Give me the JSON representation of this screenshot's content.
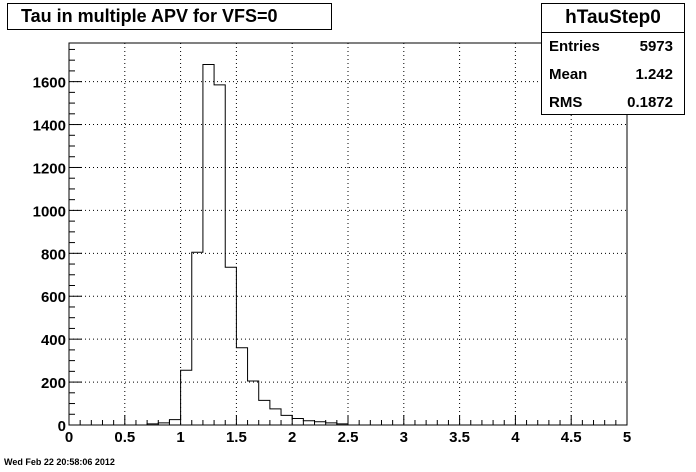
{
  "title": "Tau in multiple APV for VFS=0",
  "stats": {
    "name": "hTauStep0",
    "rows": [
      {
        "label": "Entries",
        "value": "5973"
      },
      {
        "label": "Mean",
        "value": "1.242"
      },
      {
        "label": "RMS",
        "value": "0.1872"
      }
    ]
  },
  "footer": "Wed Feb 22 20:58:06 2012",
  "chart_data": {
    "type": "bar",
    "bin_width": 0.1,
    "bin_start": 0,
    "values": [
      0,
      0,
      0,
      0,
      0,
      0,
      0,
      5,
      10,
      25,
      255,
      805,
      1680,
      1585,
      735,
      360,
      205,
      115,
      75,
      45,
      30,
      20,
      15,
      10,
      5,
      0,
      0,
      0,
      0,
      0,
      0,
      0,
      0,
      0,
      0,
      0,
      0,
      0,
      0,
      0,
      0,
      0,
      0,
      0,
      0,
      0,
      0,
      0,
      0,
      0
    ],
    "xlim": [
      0,
      5
    ],
    "ylim": [
      0,
      1780
    ],
    "x_ticks": [
      0,
      0.5,
      1,
      1.5,
      2,
      2.5,
      3,
      3.5,
      4,
      4.5,
      5
    ],
    "x_tick_labels": [
      "0",
      "0.5",
      "1",
      "1.5",
      "2",
      "2.5",
      "3",
      "3.5",
      "4",
      "4.5",
      "5"
    ],
    "y_ticks": [
      0,
      200,
      400,
      600,
      800,
      1000,
      1200,
      1400,
      1600
    ],
    "y_tick_labels": [
      "0",
      "200",
      "400",
      "600",
      "800",
      "1000",
      "1200",
      "1400",
      "1600"
    ],
    "grid": true,
    "line_color": "#000000"
  }
}
